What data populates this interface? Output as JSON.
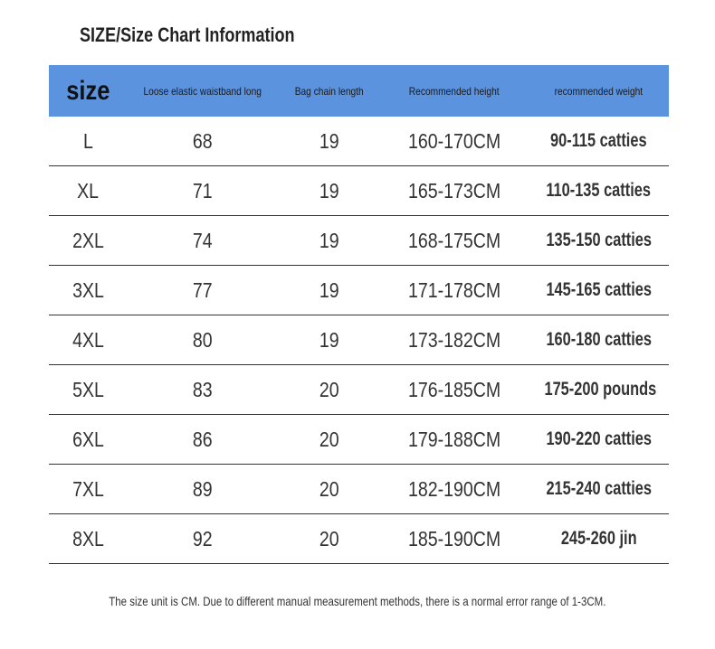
{
  "header": {
    "title": "SIZE/Size Chart Information"
  },
  "table": {
    "columns": [
      "size",
      "Loose elastic waistband long",
      "Bag chain length",
      "Recommended height",
      "recommended weight"
    ],
    "rows": [
      [
        "L",
        68,
        19,
        "160-170CM",
        "90-115 catties"
      ],
      [
        "XL",
        71,
        19,
        "165-173CM",
        "110-135 catties"
      ],
      [
        "2XL",
        74,
        19,
        "168-175CM",
        "135-150 catties"
      ],
      [
        "3XL",
        77,
        19,
        "171-178CM",
        "145-165 catties"
      ],
      [
        "4XL",
        80,
        19,
        "173-182CM",
        "160-180 catties"
      ],
      [
        "5XL",
        83,
        20,
        "176-185CM",
        "175-200 pounds"
      ],
      [
        "6XL",
        86,
        20,
        "179-188CM",
        "190-220 catties"
      ],
      [
        "7XL",
        89,
        20,
        "182-190CM",
        "215-240 catties"
      ],
      [
        "8XL",
        92,
        20,
        "185-190CM",
        "245-260 jin"
      ]
    ]
  },
  "footer": {
    "note": "The size unit is CM. Due to different manual measurement methods, there is a normal error range of 1-3CM."
  }
}
